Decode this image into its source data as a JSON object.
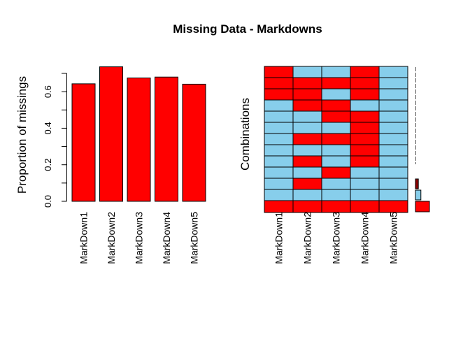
{
  "chart_data": [
    {
      "type": "bar",
      "title": "Missing Data - Markdowns",
      "xlabel": "",
      "ylabel": "Proportion of missings",
      "categories": [
        "MarkDown1",
        "MarkDown2",
        "MarkDown3",
        "MarkDown4",
        "MarkDown5"
      ],
      "values": [
        0.643,
        0.736,
        0.675,
        0.68,
        0.641
      ],
      "ylim": [
        0,
        0.7
      ],
      "yticks": [
        "0.0",
        "0.2",
        "0.4",
        "0.6"
      ],
      "ytick_values": [
        0,
        0.2,
        0.4,
        0.6
      ],
      "bar_color": "#ff0000",
      "grid": false
    },
    {
      "type": "heatmap",
      "title": "",
      "ylabel": "Combinations",
      "columns": [
        "MarkDown1",
        "MarkDown2",
        "MarkDown3",
        "MarkDown4",
        "MarkDown5"
      ],
      "rows": [
        [
          1,
          0,
          0,
          1,
          0
        ],
        [
          1,
          1,
          1,
          1,
          0
        ],
        [
          1,
          1,
          0,
          1,
          0
        ],
        [
          0,
          1,
          1,
          0,
          0
        ],
        [
          0,
          0,
          1,
          1,
          0
        ],
        [
          0,
          0,
          0,
          1,
          0
        ],
        [
          0,
          1,
          1,
          1,
          0
        ],
        [
          0,
          0,
          0,
          1,
          0
        ],
        [
          0,
          1,
          0,
          1,
          0
        ],
        [
          0,
          0,
          1,
          0,
          0
        ],
        [
          0,
          1,
          0,
          0,
          0
        ],
        [
          0,
          0,
          0,
          0,
          0
        ],
        [
          1,
          1,
          1,
          1,
          1
        ]
      ],
      "row_frequency": [
        0.001,
        0.001,
        0.001,
        0.001,
        0.001,
        0.001,
        0.001,
        0.001,
        0.001,
        0.002,
        0.015,
        0.028,
        0.072
      ],
      "colors": {
        "missing": "#ff0000",
        "observed": "#87ceeb",
        "freq_observed_only": "#87ceeb",
        "freq_partial": "#8b0000",
        "freq_default": "#ff0000"
      }
    }
  ]
}
